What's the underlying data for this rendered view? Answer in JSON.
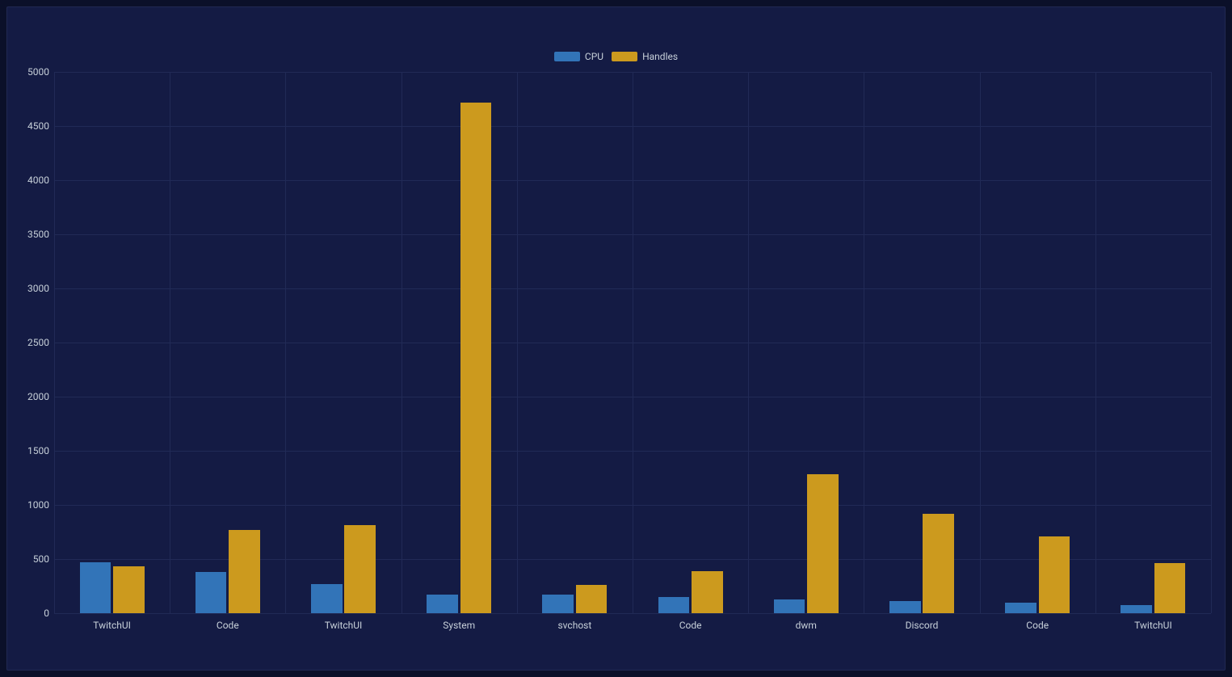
{
  "chart": {
    "type": "bar",
    "background_color": "#141b44",
    "page_background": "#0b1029",
    "grid_color": "#212a56",
    "text_color": "#c7d0d9",
    "tick_fontsize": 12,
    "legend_fontsize": 12,
    "legend_position": "top-center",
    "ylim": [
      0,
      5000
    ],
    "ytick_step": 500,
    "categories": [
      "TwitchUI",
      "Code",
      "TwitchUI",
      "System",
      "svchost",
      "Code",
      "dwm",
      "Discord",
      "Code",
      "TwitchUI"
    ],
    "series": [
      {
        "name": "CPU",
        "color": "#3274b8",
        "values": [
          470,
          380,
          270,
          170,
          170,
          150,
          130,
          110,
          100,
          75
        ]
      },
      {
        "name": "Handles",
        "color": "#cc9a1e",
        "values": [
          430,
          770,
          810,
          4720,
          260,
          390,
          1280,
          920,
          710,
          460
        ]
      }
    ],
    "bar_gap_ratio": 0.02,
    "group_pad_ratio": 0.22
  }
}
